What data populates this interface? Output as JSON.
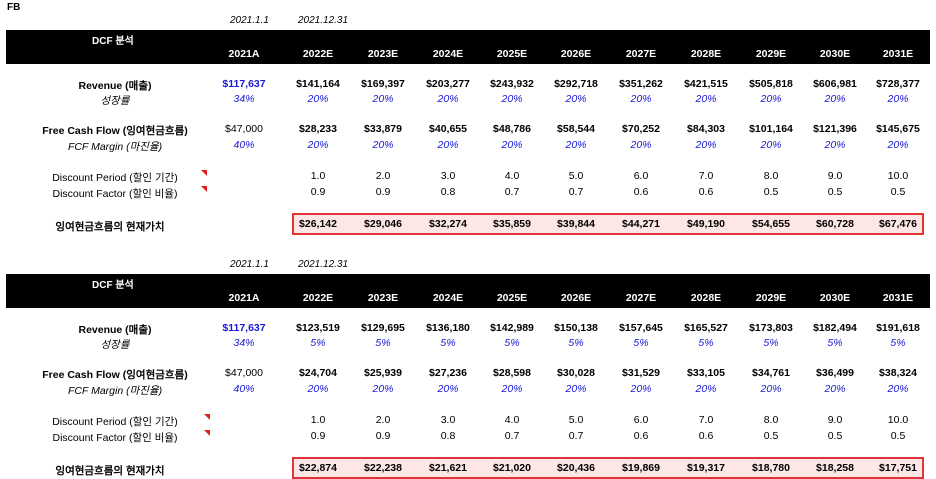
{
  "ticker": "FB",
  "tables": [
    {
      "date_start": "2021.1.1",
      "date_end": "2021.12.31",
      "title": "DCF 분석",
      "years": [
        "2021A",
        "2022E",
        "2023E",
        "2024E",
        "2025E",
        "2026E",
        "2027E",
        "2028E",
        "2029E",
        "2030E",
        "2031E"
      ],
      "revenue_label": "Revenue (매출)",
      "revenue": [
        "$117,637",
        "$141,164",
        "$169,397",
        "$203,277",
        "$243,932",
        "$292,718",
        "$351,262",
        "$421,515",
        "$505,818",
        "$606,981",
        "$728,377"
      ],
      "growth_label": "성장률",
      "growth": [
        "34%",
        "20%",
        "20%",
        "20%",
        "20%",
        "20%",
        "20%",
        "20%",
        "20%",
        "20%",
        "20%"
      ],
      "fcf_label": "Free Cash Flow (잉여현금흐름)",
      "fcf": [
        "$47,000",
        "$28,233",
        "$33,879",
        "$40,655",
        "$48,786",
        "$58,544",
        "$70,252",
        "$84,303",
        "$101,164",
        "$121,396",
        "$145,675"
      ],
      "margin_label": "FCF Margin (마진율)",
      "margin": [
        "40%",
        "20%",
        "20%",
        "20%",
        "20%",
        "20%",
        "20%",
        "20%",
        "20%",
        "20%",
        "20%"
      ],
      "period_label": "Discount Period (할인 기간)",
      "period": [
        "1.0",
        "2.0",
        "3.0",
        "4.0",
        "5.0",
        "6.0",
        "7.0",
        "8.0",
        "9.0",
        "10.0"
      ],
      "factor_label": "Discount Factor (할인 비율)",
      "factor": [
        "0.9",
        "0.9",
        "0.8",
        "0.7",
        "0.7",
        "0.6",
        "0.6",
        "0.5",
        "0.5",
        "0.5"
      ],
      "pv_label": "잉여현금흐름의 현재가치",
      "pv": [
        "$26,142",
        "$29,046",
        "$32,274",
        "$35,859",
        "$39,844",
        "$44,271",
        "$49,190",
        "$54,655",
        "$60,728",
        "$67,476"
      ]
    },
    {
      "date_start": "2021.1.1",
      "date_end": "2021.12.31",
      "title": "DCF 분석",
      "years": [
        "2021A",
        "2022E",
        "2023E",
        "2024E",
        "2025E",
        "2026E",
        "2027E",
        "2028E",
        "2029E",
        "2030E",
        "2031E"
      ],
      "revenue_label": "Revenue (매출)",
      "revenue": [
        "$117,637",
        "$123,519",
        "$129,695",
        "$136,180",
        "$142,989",
        "$150,138",
        "$157,645",
        "$165,527",
        "$173,803",
        "$182,494",
        "$191,618"
      ],
      "growth_label": "성장률",
      "growth": [
        "34%",
        "5%",
        "5%",
        "5%",
        "5%",
        "5%",
        "5%",
        "5%",
        "5%",
        "5%",
        "5%"
      ],
      "fcf_label": "Free Cash Flow (잉여현금흐름)",
      "fcf": [
        "$47,000",
        "$24,704",
        "$25,939",
        "$27,236",
        "$28,598",
        "$30,028",
        "$31,529",
        "$33,105",
        "$34,761",
        "$36,499",
        "$38,324"
      ],
      "margin_label": "FCF Margin (마진율)",
      "margin": [
        "40%",
        "20%",
        "20%",
        "20%",
        "20%",
        "20%",
        "20%",
        "20%",
        "20%",
        "20%",
        "20%"
      ],
      "period_label": "Discount Period (할인 기간)",
      "period": [
        "1.0",
        "2.0",
        "3.0",
        "4.0",
        "5.0",
        "6.0",
        "7.0",
        "8.0",
        "9.0",
        "10.0"
      ],
      "factor_label": "Discount Factor (할인 비율)",
      "factor": [
        "0.9",
        "0.9",
        "0.8",
        "0.7",
        "0.7",
        "0.6",
        "0.6",
        "0.5",
        "0.5",
        "0.5"
      ],
      "pv_label": "잉여현금흐름의 현재가치",
      "pv": [
        "$22,874",
        "$22,238",
        "$21,621",
        "$21,020",
        "$20,436",
        "$19,869",
        "$19,317",
        "$18,780",
        "$18,258",
        "$17,751"
      ]
    }
  ]
}
